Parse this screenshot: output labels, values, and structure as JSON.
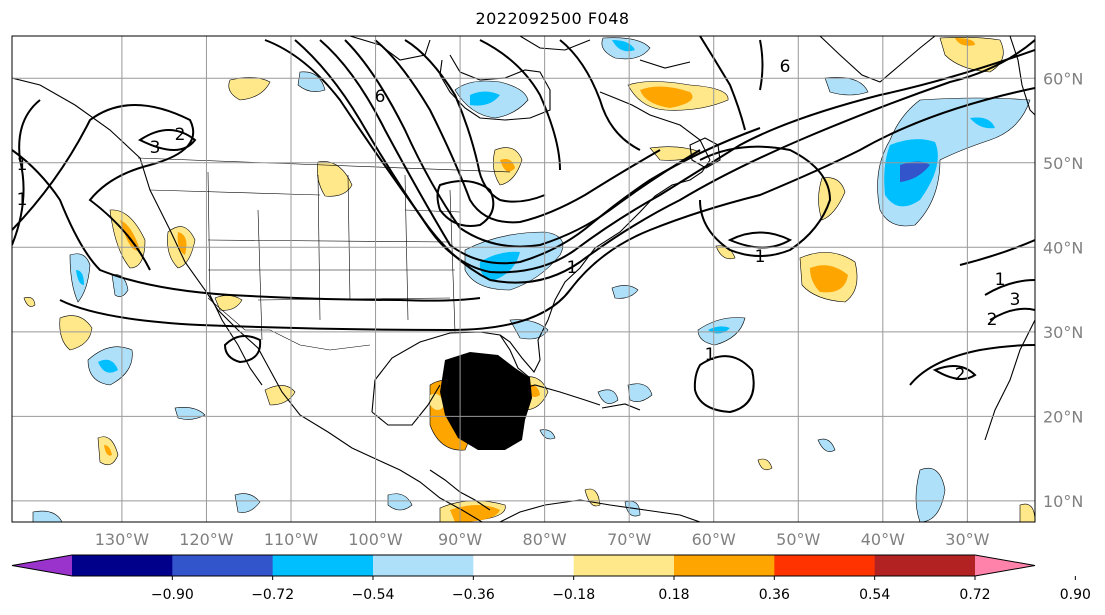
{
  "title": "2022092500 F048",
  "map": {
    "projection": "PlateCarree",
    "lon_range": [
      -143,
      -22
    ],
    "lat_range": [
      7.5,
      65
    ],
    "gridlines": true,
    "lon_ticks": [
      {
        "value": -130,
        "label": "130°W"
      },
      {
        "value": -120,
        "label": "120°W"
      },
      {
        "value": -110,
        "label": "110°W"
      },
      {
        "value": -100,
        "label": "100°W"
      },
      {
        "value": -90,
        "label": "90°W"
      },
      {
        "value": -80,
        "label": "80°W"
      },
      {
        "value": -70,
        "label": "70°W"
      },
      {
        "value": -60,
        "label": "60°W"
      },
      {
        "value": -50,
        "label": "50°W"
      },
      {
        "value": -40,
        "label": "40°W"
      },
      {
        "value": -30,
        "label": "30°W"
      }
    ],
    "lat_ticks": [
      {
        "value": 60,
        "label": "60°N"
      },
      {
        "value": 50,
        "label": "50°N"
      },
      {
        "value": 40,
        "label": "40°N"
      },
      {
        "value": 30,
        "label": "30°N"
      },
      {
        "value": 20,
        "label": "20°N"
      },
      {
        "value": 10,
        "label": "10°N"
      }
    ],
    "contour_labels": [
      "3",
      "1",
      "2",
      "6",
      "1",
      "1",
      "1",
      "2",
      "3",
      "1",
      "1",
      "2",
      "6"
    ]
  },
  "colorbar": {
    "levels": [
      "−0.90",
      "−0.72",
      "−0.54",
      "−0.36",
      "−0.18",
      "0.18",
      "0.36",
      "0.54",
      "0.72",
      "0.90"
    ],
    "colors": [
      "#9933cc",
      "#00008b",
      "#3355cc",
      "#00bfff",
      "#aee0fa",
      "#ffffff",
      "#ffe88a",
      "#ffa500",
      "#ff3300",
      "#b22222",
      "#ff82ab"
    ],
    "extend": "both"
  }
}
